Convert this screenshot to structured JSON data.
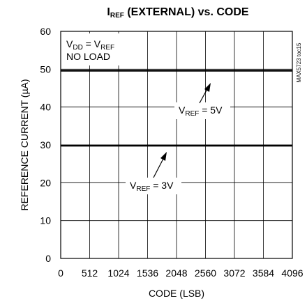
{
  "chart_data": {
    "type": "line",
    "title": {
      "main": "I",
      "sub": "REF",
      "rest": " (EXTERNAL) vs. CODE"
    },
    "xlabel": "CODE (LSB)",
    "ylabel": "REFERENCE CURRENT (µA)",
    "xlim": [
      0,
      4096
    ],
    "ylim": [
      0,
      60
    ],
    "xticks": [
      0,
      512,
      1024,
      1536,
      2048,
      2560,
      3072,
      3584,
      4096
    ],
    "yticks": [
      0,
      10,
      20,
      30,
      40,
      50,
      60
    ],
    "grid": true,
    "series": [
      {
        "x": [
          0,
          512,
          1024,
          1536,
          2048,
          2560,
          3072,
          3584,
          4096
        ],
        "y": [
          49.6,
          49.6,
          49.6,
          49.6,
          49.6,
          49.6,
          49.6,
          49.6,
          49.6
        ]
      },
      {
        "x": [
          0,
          512,
          1024,
          1536,
          2048,
          2560,
          3072,
          3584,
          4096
        ],
        "y": [
          29.8,
          29.8,
          29.8,
          29.8,
          29.8,
          29.8,
          29.8,
          29.8,
          29.8
        ]
      }
    ],
    "annotations": {
      "conditions": {
        "line1": {
          "a": "V",
          "a_sub": "DD",
          "b": " = V",
          "b_sub": "REF"
        },
        "line2": "NO LOAD"
      },
      "label_5v": {
        "main": "V",
        "sub": "REF",
        "rest": " = 5V"
      },
      "label_3v": {
        "main": "V",
        "sub": "REF",
        "rest": " = 3V"
      }
    },
    "side_text": "MAX5723 toc15"
  }
}
